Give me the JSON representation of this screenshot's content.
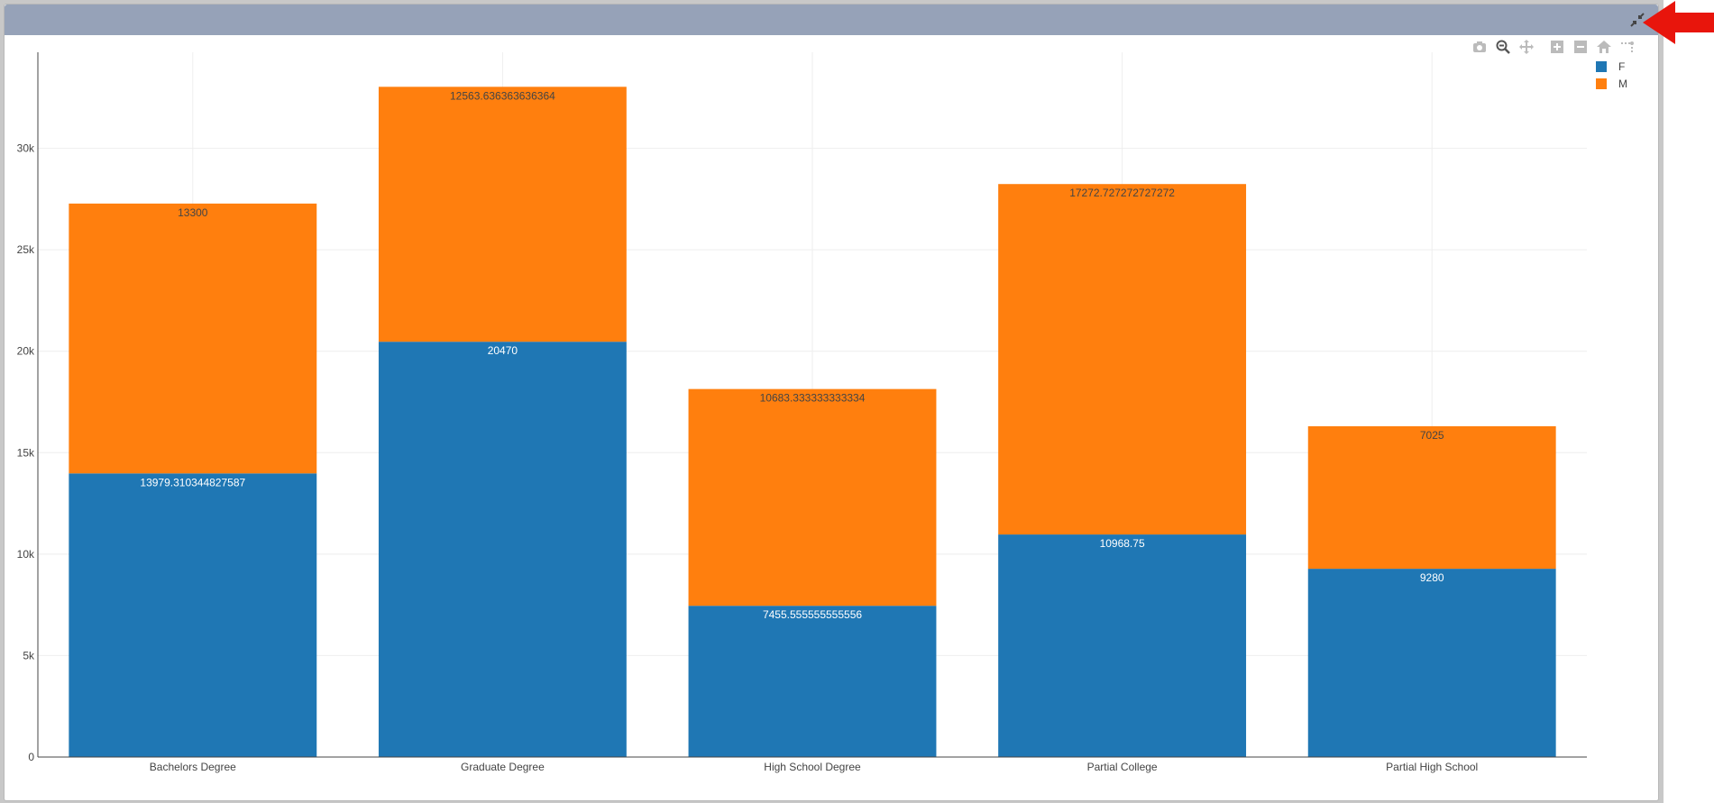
{
  "chart_data": {
    "type": "bar",
    "barmode": "stack",
    "categories": [
      "Bachelors Degree",
      "Graduate Degree",
      "High School Degree",
      "Partial College",
      "Partial High School"
    ],
    "series": [
      {
        "name": "F",
        "color": "#1f77b4",
        "values": [
          13979.310344827587,
          20470,
          7455.555555555556,
          10968.75,
          9280
        ],
        "labels": [
          "13979.310344827587",
          "20470",
          "7455.555555555556",
          "10968.75",
          "9280"
        ]
      },
      {
        "name": "M",
        "color": "#ff7f0e",
        "values": [
          13300,
          12563.636363636364,
          10683.333333333334,
          17272.727272727272,
          7025
        ],
        "labels": [
          "13300",
          "12563.636363636364",
          "10683.333333333334",
          "17272.727272727272",
          "7025"
        ]
      }
    ],
    "ylim": [
      0,
      34736
    ],
    "yticks": [
      0,
      5000,
      10000,
      15000,
      20000,
      25000,
      30000
    ],
    "ytick_labels": [
      "0",
      "5k",
      "10k",
      "15k",
      "20k",
      "25k",
      "30k"
    ],
    "grid": true,
    "legend_position": "top-right"
  },
  "modebar": [
    "camera-icon",
    "zoom-icon",
    "pan-icon",
    "zoom-in-icon",
    "zoom-out-icon",
    "home-icon",
    "spike-lines-icon"
  ],
  "annotation_arrow_color": "#e8150c"
}
